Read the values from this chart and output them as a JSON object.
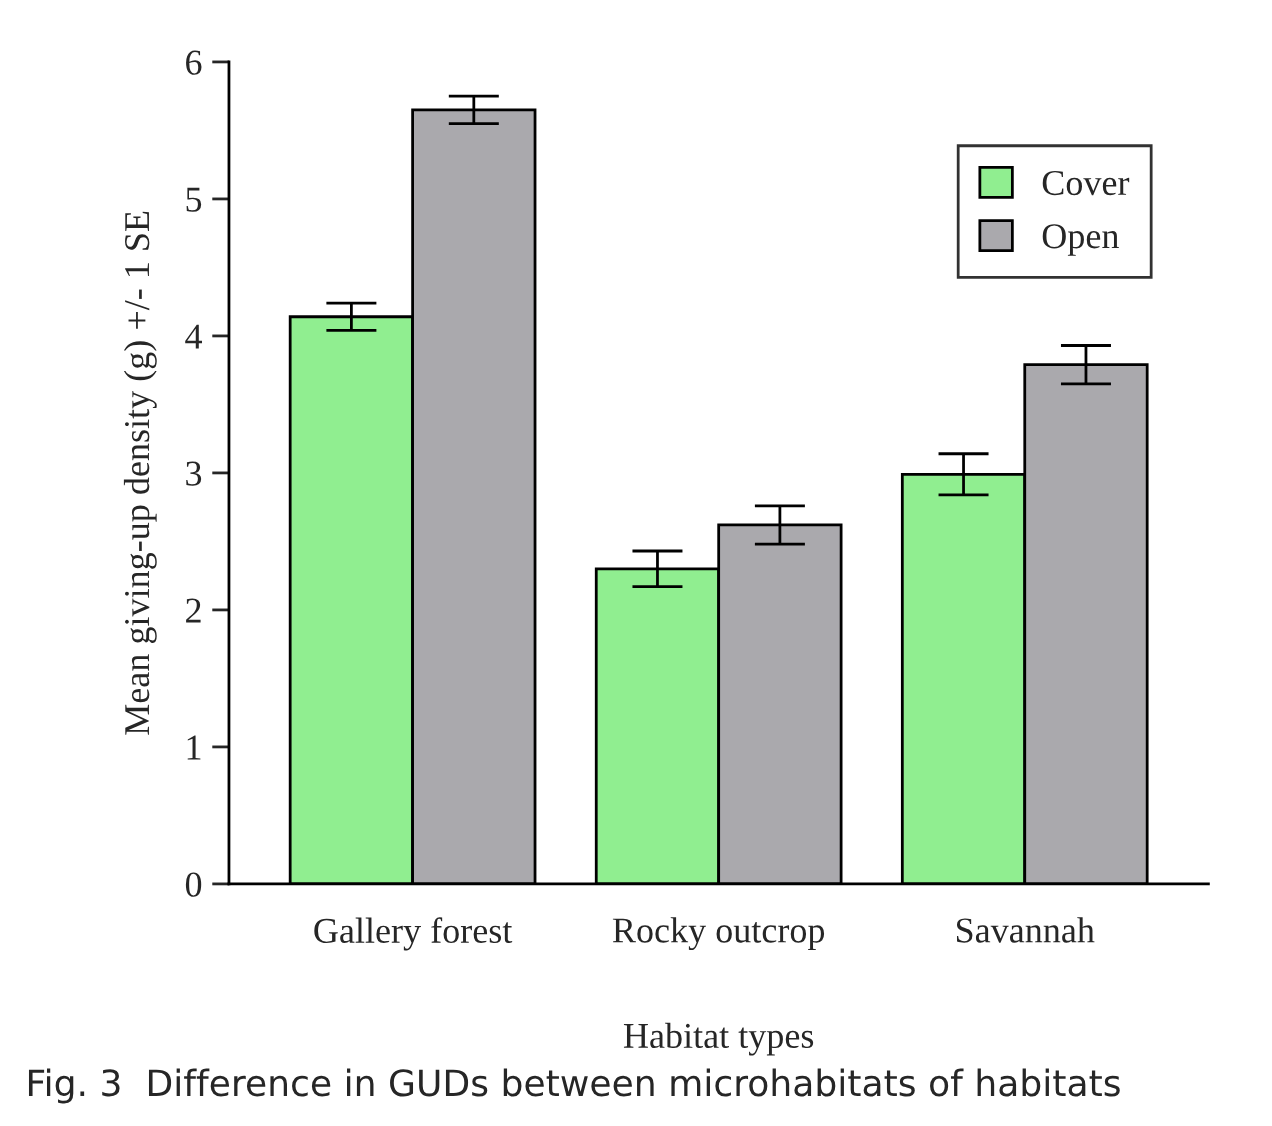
{
  "chart_data": {
    "type": "bar",
    "xlabel": "Habitat types",
    "ylabel": "Mean giving-up density (g) +/- 1 SE",
    "categories": [
      "Gallery forest",
      "Rocky outcrop",
      "Savannah"
    ],
    "series": [
      {
        "name": "Cover",
        "color": "#90ee90",
        "values": [
          4.14,
          2.3,
          2.99
        ],
        "errors": [
          0.1,
          0.13,
          0.15
        ]
      },
      {
        "name": "Open",
        "color": "#aaa9ad",
        "values": [
          5.65,
          2.62,
          3.79
        ],
        "errors": [
          0.1,
          0.14,
          0.14
        ]
      }
    ],
    "ylim": [
      0,
      6
    ],
    "yticks": [
      0,
      1,
      2,
      3,
      4,
      5,
      6
    ],
    "grid": false,
    "legend": "top right",
    "annotations": [
      "Fig. 3  Difference in GUDs between microhabitats of habitats"
    ]
  }
}
